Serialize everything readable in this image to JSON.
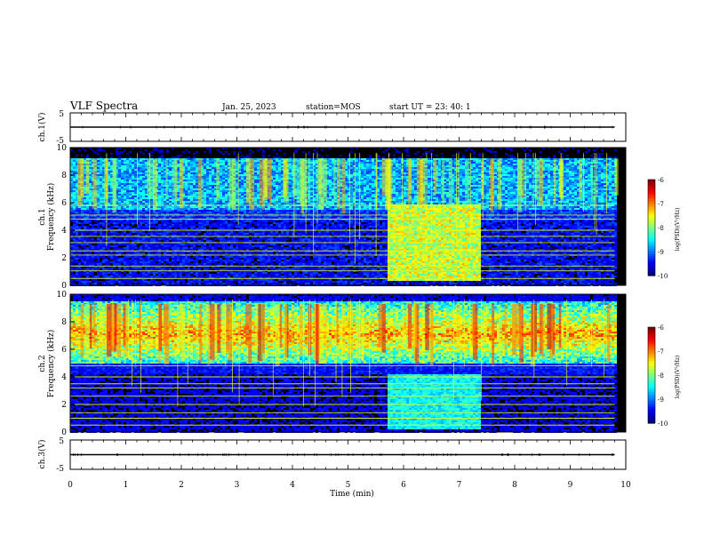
{
  "header": {
    "title": "VLF Spectra",
    "date": "Jan. 25, 2023",
    "station": "station=MOS",
    "start": "start UT =  23: 40: 1"
  },
  "chart_data": [
    {
      "type": "line",
      "name": "ch1-waveform",
      "ylabel": "ch.1(V)",
      "ylim": [
        -5,
        5
      ],
      "yticks": [
        "5",
        "-5"
      ],
      "xlim": [
        0,
        10
      ],
      "level": 0
    },
    {
      "type": "heatmap",
      "name": "ch1-spectrogram",
      "ylabel": "ch.1 Frequency (kHz)",
      "ylabel_lines": [
        "ch.1",
        "Frequency (kHz)"
      ],
      "ylim": [
        0,
        10
      ],
      "yticks": [
        "0",
        "2",
        "4",
        "6",
        "8",
        "10"
      ],
      "xlim": [
        0,
        10
      ],
      "data_end_min": 9.8,
      "bright_segment_min": [
        5.7,
        7.35
      ],
      "colorbar": {
        "label": "log(PSD)(V²/Hz)",
        "ticks": [
          "-6",
          "-7",
          "-8",
          "-9",
          "-10"
        ],
        "range": [
          -10,
          -6
        ]
      }
    },
    {
      "type": "heatmap",
      "name": "ch2-spectrogram",
      "ylabel": "ch.2 Frequency (kHz)",
      "ylabel_lines": [
        "ch.2",
        "Frequency (kHz)"
      ],
      "ylim": [
        0,
        10
      ],
      "yticks": [
        "0",
        "2",
        "4",
        "6",
        "8",
        "10"
      ],
      "xlim": [
        0,
        10
      ],
      "data_end_min": 9.8,
      "bright_segment_min": [
        5.7,
        7.35
      ],
      "colorbar": {
        "label": "log(PSD)(V²/Hz)",
        "ticks": [
          "-6",
          "-7",
          "-8",
          "-9",
          "-10"
        ],
        "range": [
          -10,
          -6
        ]
      }
    },
    {
      "type": "line",
      "name": "ch3-waveform",
      "ylabel": "ch.3(V)",
      "ylim": [
        -5,
        5
      ],
      "yticks": [
        "5",
        "-5"
      ],
      "xlim": [
        0,
        10
      ],
      "level": 0
    }
  ],
  "xaxis": {
    "label": "Time (min)",
    "ticks": [
      "0",
      "1",
      "2",
      "3",
      "4",
      "5",
      "6",
      "7",
      "8",
      "9",
      "10"
    ]
  }
}
